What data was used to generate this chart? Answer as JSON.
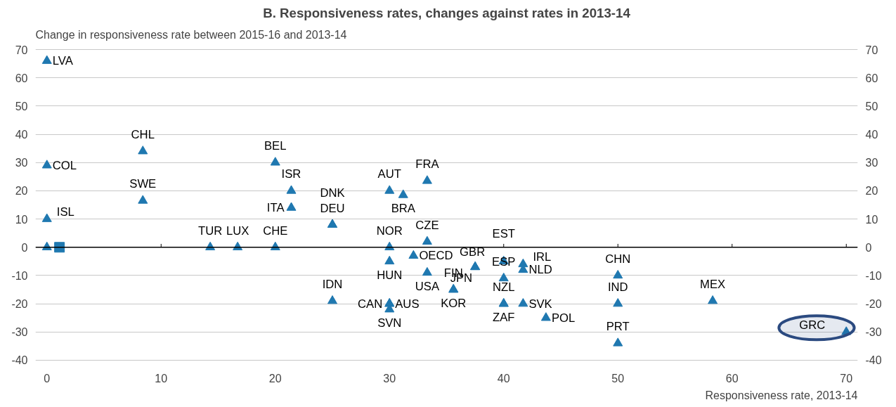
{
  "chart_data": {
    "type": "scatter",
    "title": "B. Responsiveness rates, changes against rates in 2013-14",
    "ylabel": "Change in responsiveness  rate between 2015-16 and 2013-14",
    "xlabel": "Responsiveness rate, 2013-14",
    "xlim": [
      -1,
      71
    ],
    "xticks": [
      0,
      10,
      20,
      30,
      40,
      50,
      60,
      70
    ],
    "ylim": [
      -40,
      70
    ],
    "yticks": [
      -40,
      -30,
      -20,
      -10,
      0,
      10,
      20,
      30,
      40,
      50,
      60,
      70
    ],
    "y2lim": [
      -40,
      70
    ],
    "y2ticks": [
      -40,
      -30,
      -20,
      -10,
      0,
      10,
      20,
      30,
      40,
      50,
      60,
      70
    ],
    "grid": "y",
    "ref_lines": [
      {
        "axis": "y",
        "value": 0,
        "color": "#000000"
      }
    ],
    "series": [
      {
        "marker": "triangle",
        "color": "#1f78b0",
        "x": [
          0,
          0,
          0,
          0,
          8.4,
          8.4,
          14.3,
          16.7,
          20,
          20,
          21.4,
          21.4,
          25,
          25,
          25,
          30,
          31.2,
          33.3,
          30,
          33.3,
          32.1,
          30,
          33.3,
          37.5,
          37.5,
          35.6,
          35.6,
          40,
          40,
          40,
          40,
          41.7,
          41.7,
          41.7,
          43.7,
          30,
          30,
          30,
          50,
          50,
          50,
          58.3,
          70
        ],
        "values": [
          66,
          29,
          10,
          0,
          34,
          16.5,
          0,
          0,
          0,
          30,
          20,
          14,
          8,
          8,
          -19,
          20,
          18.5,
          23.5,
          0,
          2,
          -3,
          -5,
          -9,
          -7,
          -7,
          -15,
          -15,
          -5,
          -11,
          -20,
          -20,
          -6,
          -8,
          -20,
          -25,
          -20,
          -20,
          -22,
          -10,
          -20,
          -34,
          -19,
          -30
        ],
        "value_labels": [
          "LVA",
          "COL",
          "ISL",
          null,
          "CHL",
          "SWE",
          "TUR",
          "LUX",
          "CHE",
          "BEL",
          "ISR",
          "ITA",
          "DNK",
          "DEU",
          "IDN",
          "AUT",
          "BRA",
          "FRA",
          "NOR",
          "CZE",
          "OECD",
          "HUN",
          "USA",
          "GBR",
          "JPN",
          "FIN",
          "KOR",
          "EST",
          "ESP",
          "NZL",
          "ZAF",
          "IRL",
          "NLD",
          "SVK",
          "POL",
          "CAN",
          "AUS",
          "SVN",
          "CHN",
          "IND",
          "PRT",
          "MEX",
          "GRC"
        ]
      },
      {
        "marker": "square",
        "color": "#1f78b0",
        "x": [
          1.1
        ],
        "values": [
          0
        ]
      }
    ]
  }
}
